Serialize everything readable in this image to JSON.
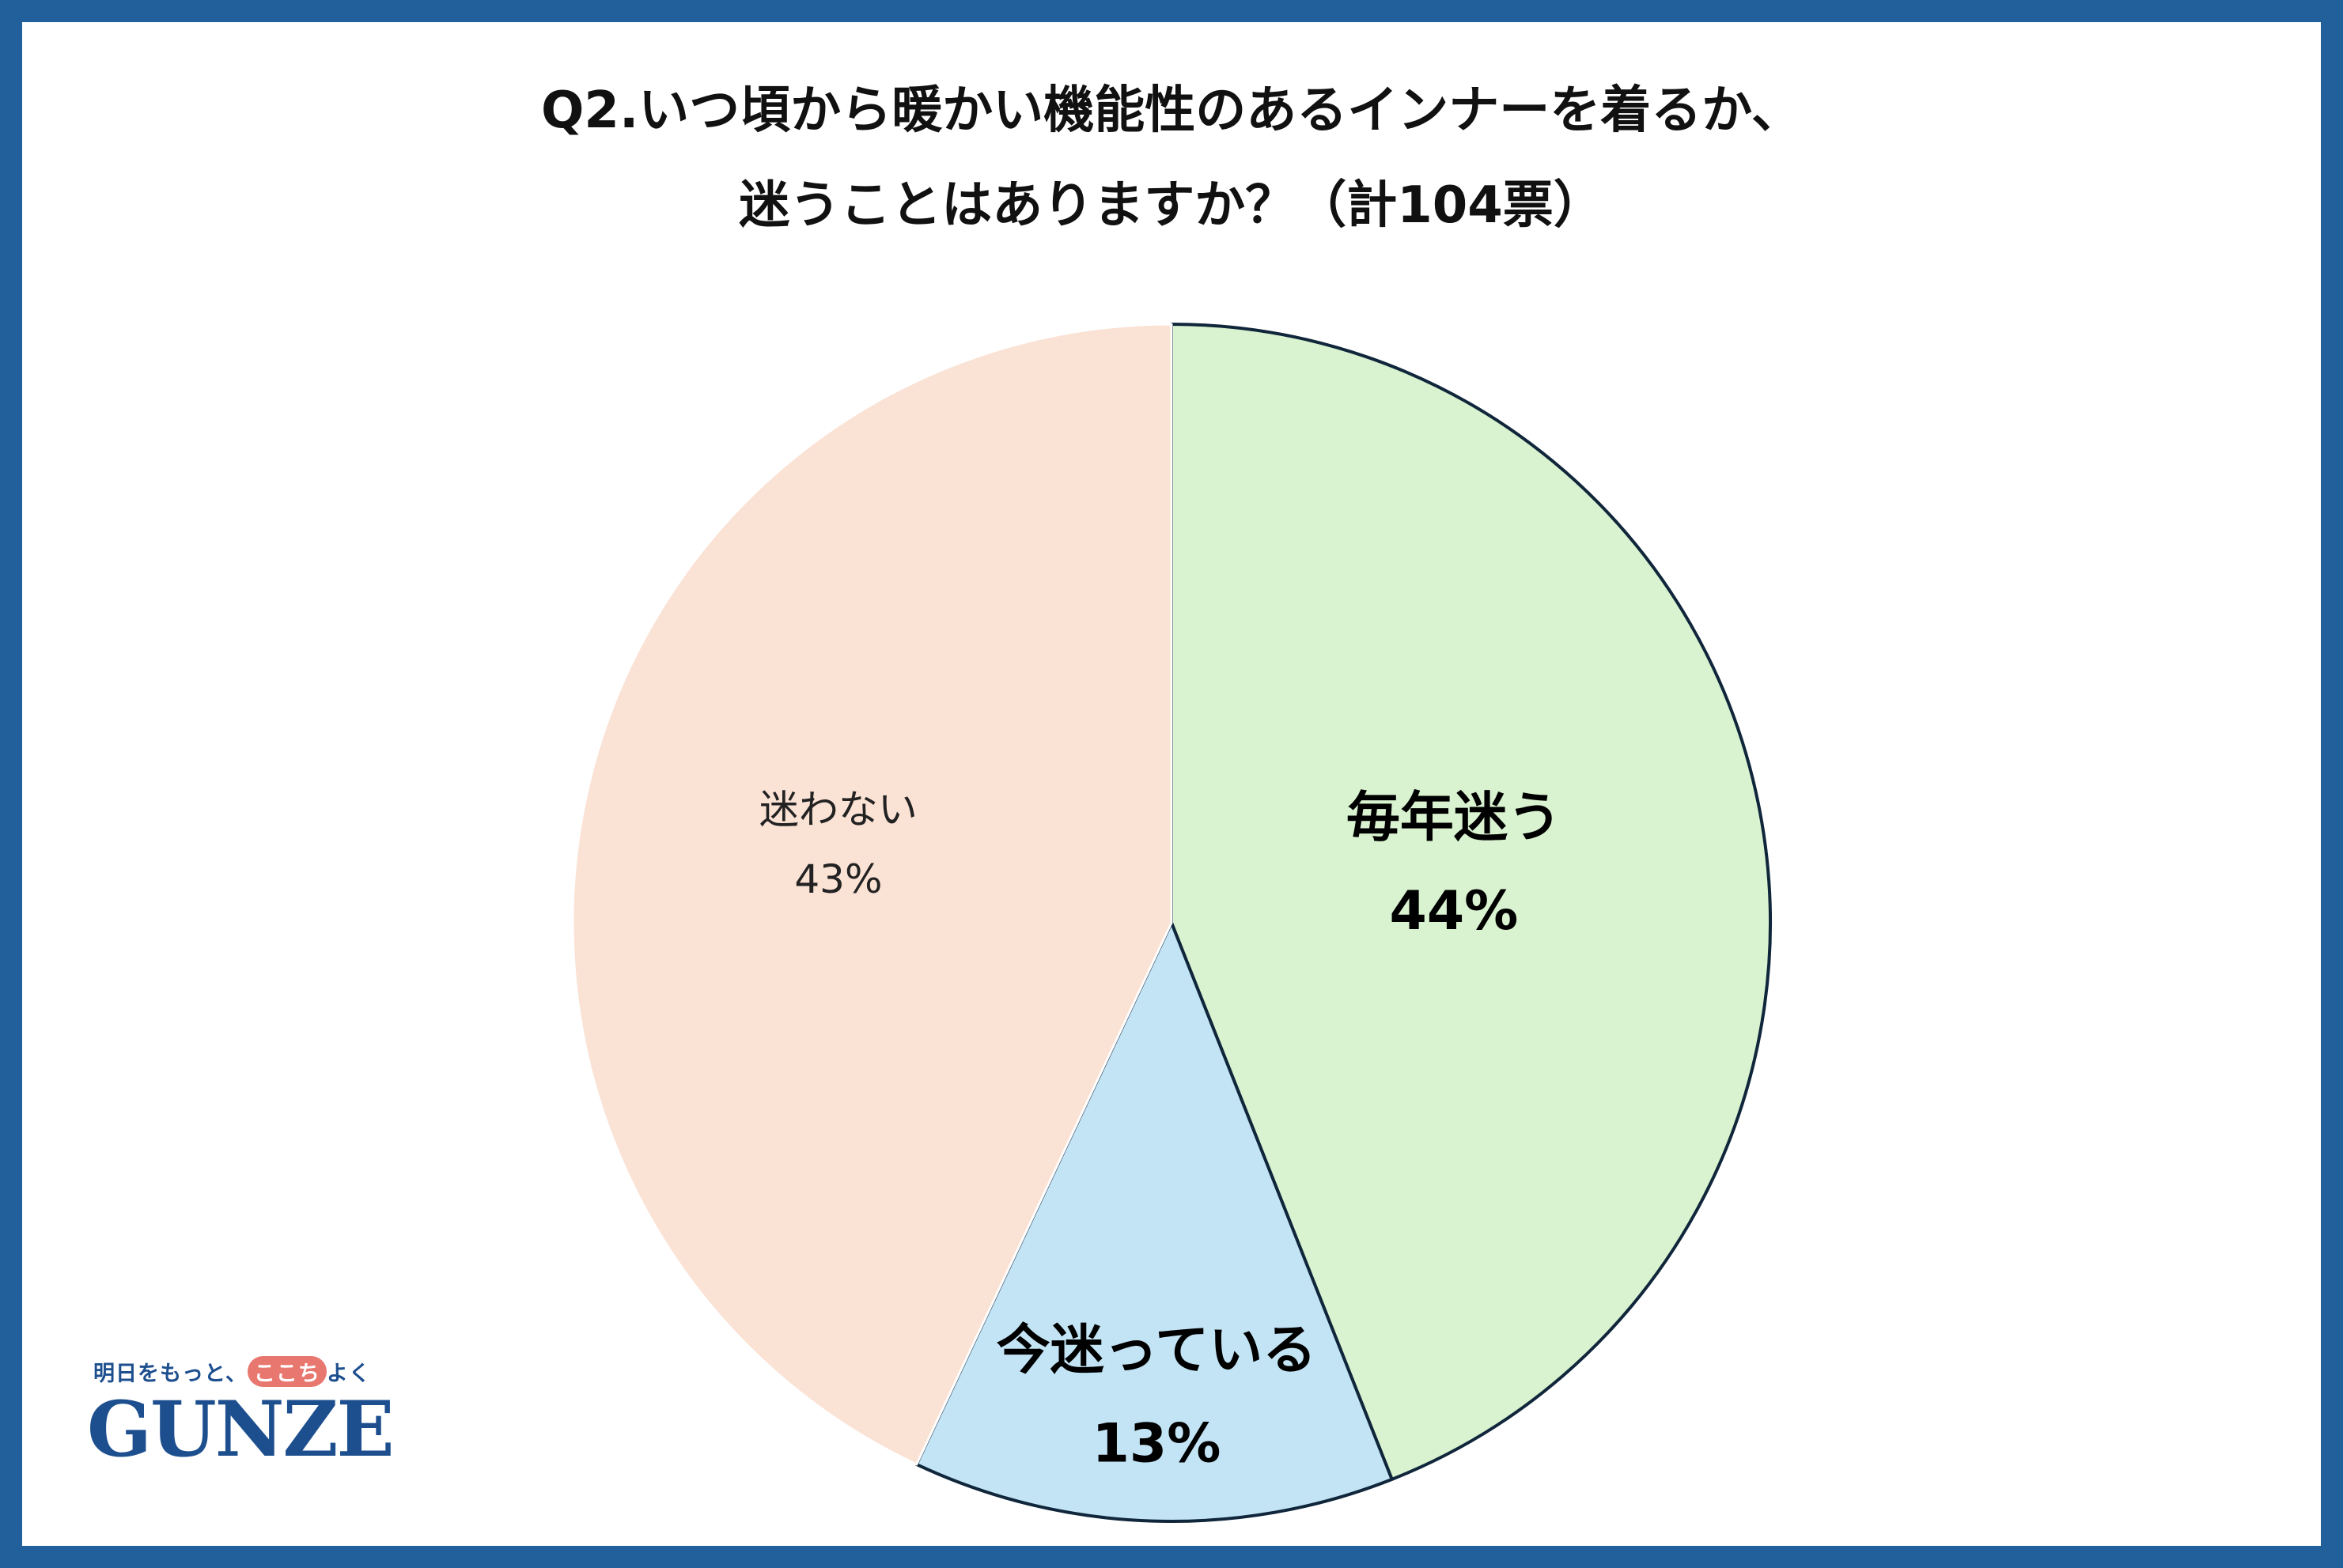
{
  "title": {
    "line1": "Q2.いつ頃から暖かい機能性のあるインナーを着るか、",
    "line2": "迷うことはありますか？（計104票）"
  },
  "logo": {
    "tagline_pre": "明日をもっと、",
    "tagline_highlight": "ここち",
    "tagline_post": "よく",
    "brand": "GUNZE"
  },
  "colors": {
    "frame": "#22609b",
    "brand": "#1d4f8f"
  },
  "chart_data": {
    "type": "pie",
    "title": "Q2.いつ頃から暖かい機能性のあるインナーを着るか、迷うことはありますか？（計104票）",
    "start": "12 o'clock",
    "direction": "clockwise",
    "slices": [
      {
        "label": "毎年迷う",
        "value": 44,
        "value_label": "44%",
        "color": "#d9f2d0",
        "emphasis": true
      },
      {
        "label": "今迷っている",
        "value": 13,
        "value_label": "13%",
        "color": "#c3e4f5",
        "emphasis": true
      },
      {
        "label": "迷わない",
        "value": 43,
        "value_label": "43%",
        "color": "#fae2d5",
        "emphasis": false
      }
    ]
  }
}
